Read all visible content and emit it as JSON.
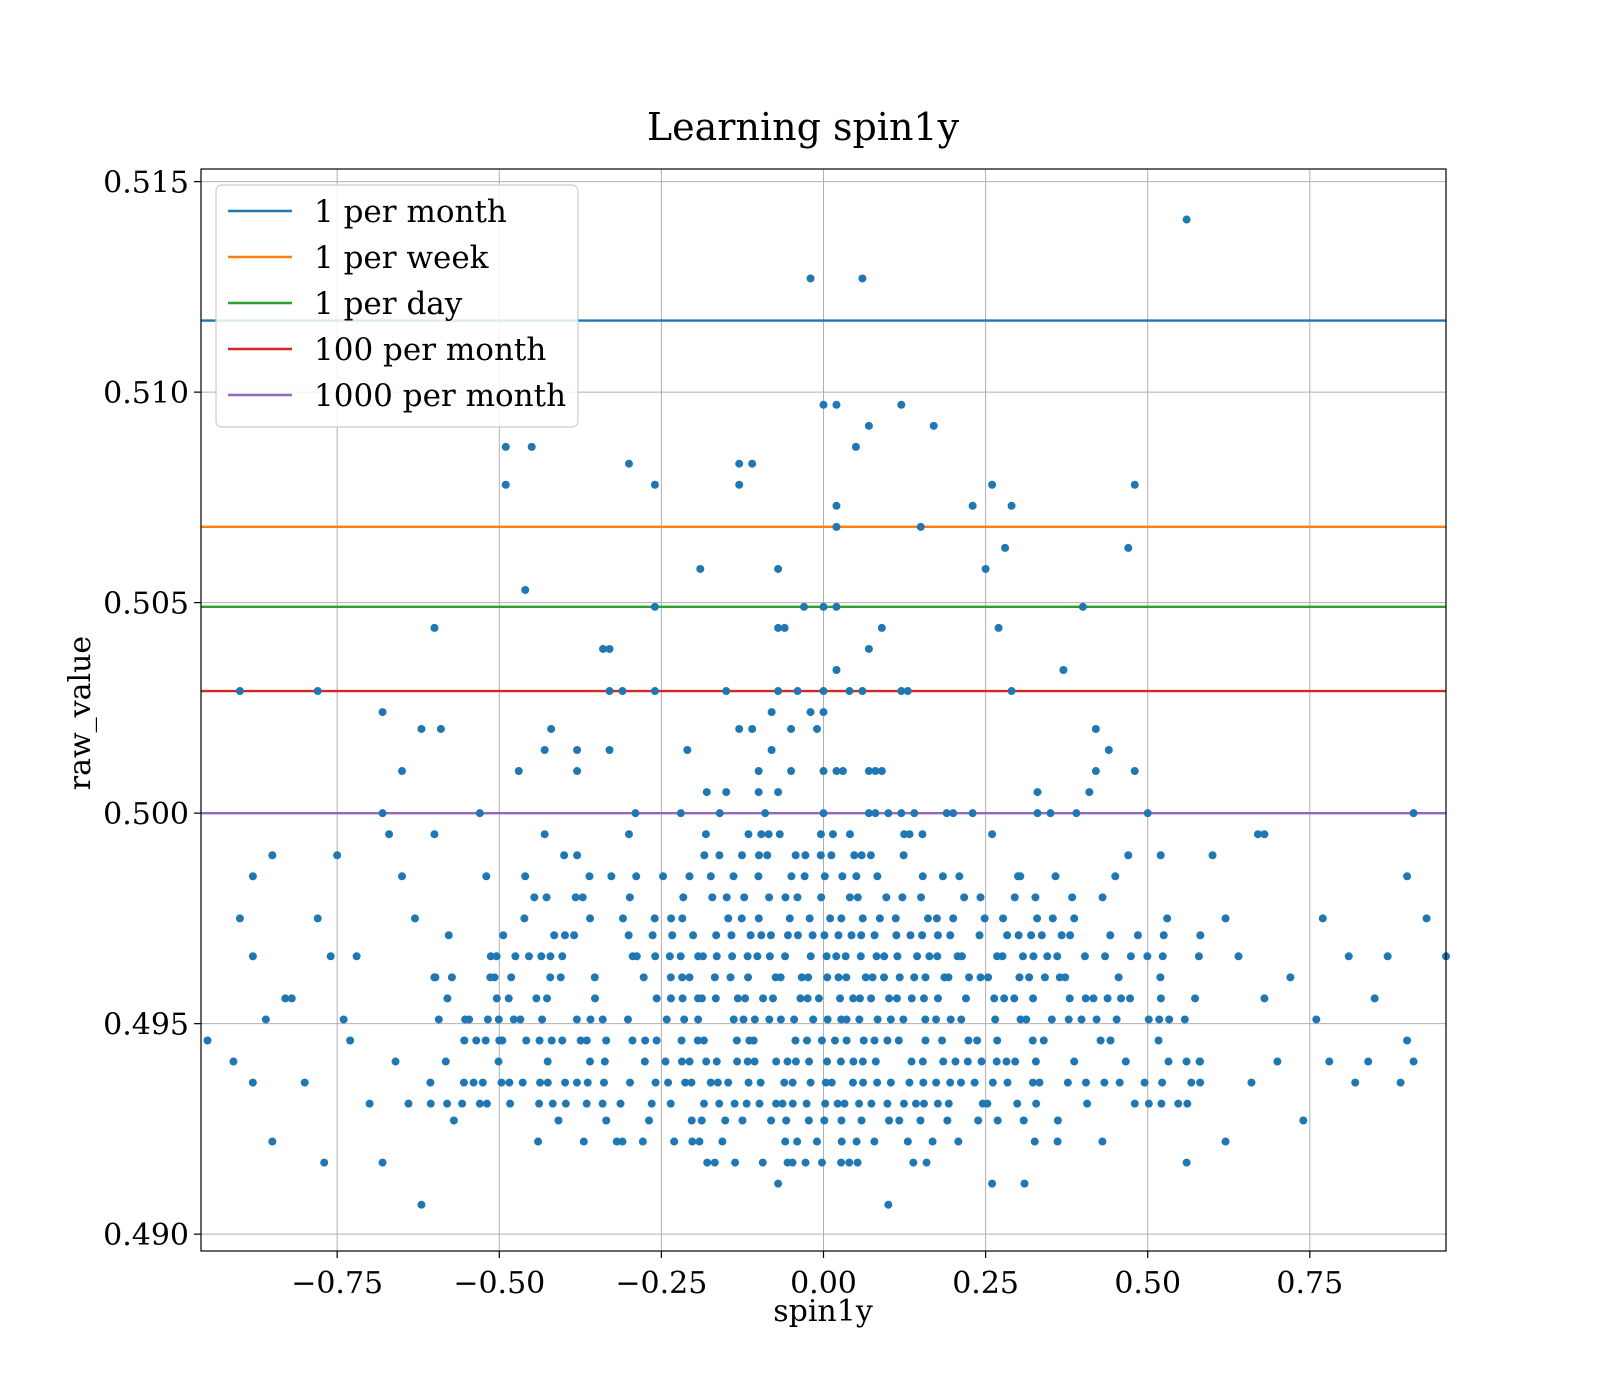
{
  "chart_data": {
    "type": "scatter",
    "title": "Learning spin1y",
    "xlabel": "spin1y",
    "ylabel": "raw_value",
    "xlim": [
      -0.96,
      0.96
    ],
    "ylim": [
      0.4896,
      0.5153
    ],
    "xticks": [
      -0.75,
      -0.5,
      -0.25,
      0.0,
      0.25,
      0.5,
      0.75
    ],
    "xtick_labels": [
      "−0.75",
      "−0.50",
      "−0.25",
      "0.00",
      "0.25",
      "0.50",
      "0.75"
    ],
    "yticks": [
      0.49,
      0.495,
      0.5,
      0.505,
      0.51,
      0.515
    ],
    "ytick_labels": [
      "0.490",
      "0.495",
      "0.500",
      "0.505",
      "0.510",
      "0.515"
    ],
    "grid": true,
    "legend_position": "upper-left",
    "reference_lines": [
      {
        "name": "1 per month",
        "y": 0.5117,
        "color": "#1f77b4"
      },
      {
        "name": "1 per week",
        "y": 0.5068,
        "color": "#ff7f0e"
      },
      {
        "name": "1 per day",
        "y": 0.5049,
        "color": "#2ca02c"
      },
      {
        "name": "100 per month",
        "y": 0.5029,
        "color": "#d62728"
      },
      {
        "name": "1000 per month",
        "y": 0.5,
        "color": "#9467bd"
      }
    ],
    "scatter": {
      "color": "#1f77b4",
      "points": [
        [
          0.56,
          0.5141
        ],
        [
          -0.02,
          0.5127
        ],
        [
          0.06,
          0.5127
        ],
        [
          0.0,
          0.5097
        ],
        [
          0.02,
          0.5097
        ],
        [
          0.12,
          0.5097
        ],
        [
          0.07,
          0.5092
        ],
        [
          0.17,
          0.5092
        ],
        [
          -0.49,
          0.5087
        ],
        [
          -0.45,
          0.5087
        ],
        [
          0.05,
          0.5087
        ],
        [
          -0.3,
          0.5083
        ],
        [
          -0.13,
          0.5083
        ],
        [
          -0.11,
          0.5083
        ],
        [
          -0.49,
          0.5078
        ],
        [
          -0.26,
          0.5078
        ],
        [
          -0.13,
          0.5078
        ],
        [
          0.26,
          0.5078
        ],
        [
          0.48,
          0.5078
        ],
        [
          0.02,
          0.5073
        ],
        [
          0.23,
          0.5073
        ],
        [
          0.29,
          0.5073
        ],
        [
          0.02,
          0.5068
        ],
        [
          0.15,
          0.5068
        ],
        [
          0.28,
          0.5063
        ],
        [
          0.47,
          0.5063
        ],
        [
          -0.19,
          0.5058
        ],
        [
          -0.07,
          0.5058
        ],
        [
          0.25,
          0.5058
        ],
        [
          -0.46,
          0.5053
        ],
        [
          -0.26,
          0.5049
        ],
        [
          -0.03,
          0.5049
        ],
        [
          0.0,
          0.5049
        ],
        [
          0.02,
          0.5049
        ],
        [
          0.4,
          0.5049
        ],
        [
          -0.6,
          0.5044
        ],
        [
          -0.07,
          0.5044
        ],
        [
          -0.06,
          0.5044
        ],
        [
          0.09,
          0.5044
        ],
        [
          0.27,
          0.5044
        ],
        [
          -0.34,
          0.5039
        ],
        [
          -0.33,
          0.5039
        ],
        [
          0.07,
          0.5039
        ],
        [
          0.02,
          0.5034
        ],
        [
          0.37,
          0.5034
        ],
        [
          -0.9,
          0.5029
        ],
        [
          -0.78,
          0.5029
        ],
        [
          -0.33,
          0.5029
        ],
        [
          -0.31,
          0.5029
        ],
        [
          -0.26,
          0.5029
        ],
        [
          -0.15,
          0.5029
        ],
        [
          -0.07,
          0.5029
        ],
        [
          -0.04,
          0.5029
        ],
        [
          0.0,
          0.5029
        ],
        [
          0.04,
          0.5029
        ],
        [
          0.06,
          0.5029
        ],
        [
          0.12,
          0.5029
        ],
        [
          0.13,
          0.5029
        ],
        [
          0.29,
          0.5029
        ],
        [
          -0.68,
          0.5024
        ],
        [
          -0.08,
          0.5024
        ],
        [
          -0.02,
          0.5024
        ],
        [
          0.0,
          0.5024
        ],
        [
          -0.62,
          0.502
        ],
        [
          -0.59,
          0.502
        ],
        [
          -0.42,
          0.502
        ],
        [
          -0.13,
          0.502
        ],
        [
          -0.11,
          0.502
        ],
        [
          -0.05,
          0.502
        ],
        [
          -0.01,
          0.502
        ],
        [
          0.42,
          0.502
        ],
        [
          -0.43,
          0.5015
        ],
        [
          -0.38,
          0.5015
        ],
        [
          -0.33,
          0.5015
        ],
        [
          -0.21,
          0.5015
        ],
        [
          -0.08,
          0.5015
        ],
        [
          0.44,
          0.5015
        ],
        [
          -0.65,
          0.501
        ],
        [
          -0.47,
          0.501
        ],
        [
          -0.38,
          0.501
        ],
        [
          -0.1,
          0.501
        ],
        [
          -0.05,
          0.501
        ],
        [
          0.0,
          0.501
        ],
        [
          0.02,
          0.501
        ],
        [
          0.03,
          0.501
        ],
        [
          0.07,
          0.501
        ],
        [
          0.08,
          0.501
        ],
        [
          0.09,
          0.501
        ],
        [
          0.42,
          0.501
        ],
        [
          0.48,
          0.501
        ],
        [
          -0.18,
          0.5005
        ],
        [
          -0.15,
          0.5005
        ],
        [
          -0.1,
          0.5005
        ],
        [
          -0.07,
          0.5005
        ],
        [
          0.33,
          0.5005
        ],
        [
          0.41,
          0.5005
        ],
        [
          -0.68,
          0.5
        ],
        [
          -0.53,
          0.5
        ],
        [
          -0.29,
          0.5
        ],
        [
          -0.22,
          0.5
        ],
        [
          -0.16,
          0.5
        ],
        [
          -0.09,
          0.5
        ],
        [
          0.0,
          0.5
        ],
        [
          0.07,
          0.5
        ],
        [
          0.08,
          0.5
        ],
        [
          0.1,
          0.5
        ],
        [
          0.12,
          0.5
        ],
        [
          0.14,
          0.5
        ],
        [
          0.19,
          0.5
        ],
        [
          0.2,
          0.5
        ],
        [
          0.23,
          0.5
        ],
        [
          0.33,
          0.5
        ],
        [
          0.35,
          0.5
        ],
        [
          0.39,
          0.5
        ],
        [
          0.5,
          0.5
        ],
        [
          0.91,
          0.5
        ],
        [
          -0.67,
          0.4995
        ],
        [
          -0.6,
          0.4995
        ],
        [
          -0.43,
          0.4995
        ],
        [
          -0.3,
          0.4995
        ],
        [
          0.26,
          0.4995
        ],
        [
          0.67,
          0.4995
        ],
        [
          0.68,
          0.4995
        ],
        [
          -0.85,
          0.499
        ],
        [
          -0.75,
          0.499
        ],
        [
          -0.4,
          0.499
        ],
        [
          -0.38,
          0.499
        ],
        [
          0.47,
          0.499
        ],
        [
          0.52,
          0.499
        ],
        [
          0.6,
          0.499
        ],
        [
          -0.88,
          0.4985
        ],
        [
          -0.65,
          0.4985
        ],
        [
          -0.52,
          0.4985
        ],
        [
          -0.46,
          0.4985
        ],
        [
          0.3,
          0.4985
        ],
        [
          0.45,
          0.4985
        ],
        [
          0.9,
          0.4985
        ],
        [
          -0.9,
          0.4975
        ],
        [
          -0.78,
          0.4975
        ],
        [
          -0.63,
          0.4975
        ],
        [
          -0.36,
          0.4975
        ],
        [
          0.53,
          0.4975
        ],
        [
          0.62,
          0.4975
        ],
        [
          0.77,
          0.4975
        ],
        [
          0.93,
          0.4975
        ],
        [
          -0.95,
          0.4946
        ],
        [
          -0.91,
          0.4941
        ],
        [
          -0.88,
          0.4936
        ],
        [
          -0.86,
          0.4951
        ],
        [
          -0.82,
          0.4956
        ],
        [
          -0.8,
          0.4936
        ],
        [
          -0.77,
          0.4917
        ],
        [
          -0.74,
          0.4951
        ],
        [
          -0.72,
          0.4966
        ],
        [
          -0.7,
          0.4931
        ],
        [
          -0.68,
          0.4917
        ],
        [
          -0.62,
          0.4907
        ],
        [
          -0.6,
          0.4961
        ],
        [
          -0.57,
          0.4927
        ],
        [
          -0.53,
          0.4931
        ],
        [
          -0.5,
          0.4946
        ],
        [
          -0.88,
          0.4966
        ],
        [
          -0.85,
          0.4922
        ],
        [
          -0.83,
          0.4956
        ],
        [
          -0.76,
          0.4966
        ],
        [
          -0.73,
          0.4946
        ],
        [
          -0.66,
          0.4941
        ],
        [
          -0.64,
          0.4931
        ],
        [
          -0.58,
          0.4956
        ],
        [
          0.56,
          0.4917
        ],
        [
          0.58,
          0.4941
        ],
        [
          0.62,
          0.4922
        ],
        [
          0.64,
          0.4966
        ],
        [
          0.66,
          0.4936
        ],
        [
          0.68,
          0.4956
        ],
        [
          0.7,
          0.4941
        ],
        [
          0.72,
          0.4961
        ],
        [
          0.74,
          0.4927
        ],
        [
          0.76,
          0.4951
        ],
        [
          0.78,
          0.4941
        ],
        [
          0.81,
          0.4966
        ],
        [
          0.82,
          0.4936
        ],
        [
          0.84,
          0.4941
        ],
        [
          0.85,
          0.4956
        ],
        [
          0.87,
          0.4966
        ],
        [
          0.89,
          0.4936
        ],
        [
          0.9,
          0.4946
        ],
        [
          0.91,
          0.4941
        ],
        [
          0.96,
          0.4966
        ],
        [
          0.26,
          0.4912
        ],
        [
          0.31,
          0.4912
        ],
        [
          0.1,
          0.4907
        ],
        [
          -0.07,
          0.4912
        ]
      ],
      "clusters": [
        {
          "x_min": -0.6,
          "x_max": 0.6,
          "levels": [
            0.4971,
            0.4966,
            0.4961,
            0.4956,
            0.4951,
            0.4946,
            0.4941,
            0.4936,
            0.4931
          ],
          "step": 0.02
        },
        {
          "x_min": -0.45,
          "x_max": 0.45,
          "levels": [
            0.4985,
            0.498,
            0.4975,
            0.4927,
            0.4922
          ],
          "step": 0.03
        },
        {
          "x_min": -0.18,
          "x_max": 0.18,
          "levels": [
            0.499,
            0.4995,
            0.4917
          ],
          "step": 0.02
        }
      ]
    }
  }
}
